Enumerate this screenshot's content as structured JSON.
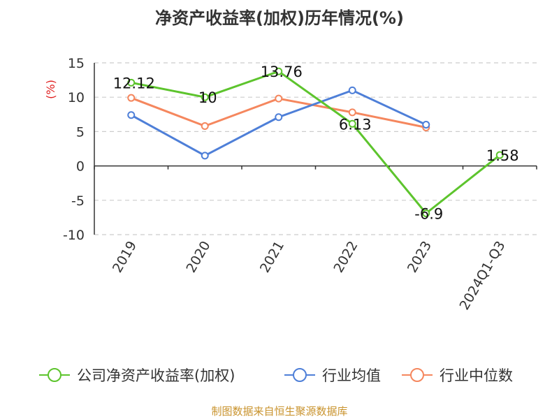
{
  "title": "净资产收益率(加权)历年情况(%)",
  "source": "制图数据来自恒生聚源数据库",
  "chart_data": {
    "type": "line",
    "title": "净资产收益率(加权)历年情况(%)",
    "ylabel": "(%)",
    "xlabel": "",
    "categories": [
      "2019",
      "2020",
      "2021",
      "2022",
      "2023",
      "2024Q1-Q3"
    ],
    "ylim": [
      -10,
      15
    ],
    "yticks": [
      15,
      10,
      5,
      0,
      -5,
      -10
    ],
    "grid": true,
    "legend_position": "bottom",
    "series": [
      {
        "name": "公司净资产收益率(加权)",
        "color": "#5dc42d",
        "values": [
          12.12,
          10,
          13.76,
          6.13,
          -6.9,
          1.58
        ],
        "labels": [
          "12.12",
          "10",
          "13.76",
          "6.13",
          "-6.9",
          "1.58"
        ]
      },
      {
        "name": "行业均值",
        "color": "#4e7fd8",
        "values": [
          7.4,
          1.5,
          7.1,
          11.0,
          6.0,
          null
        ]
      },
      {
        "name": "行业中位数",
        "color": "#f5875e",
        "values": [
          9.9,
          5.8,
          9.8,
          7.8,
          5.6,
          null
        ]
      }
    ]
  }
}
